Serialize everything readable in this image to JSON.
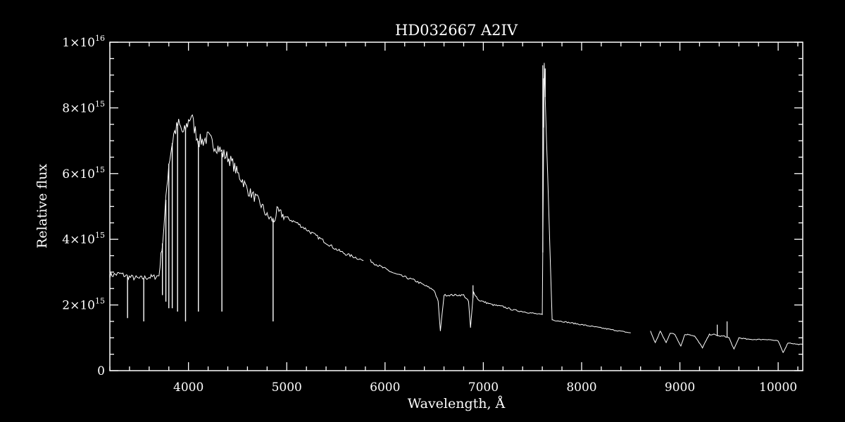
{
  "colors": {
    "background": "#000000",
    "foreground": "#ffffff"
  },
  "chart_data": {
    "type": "line",
    "title": "HD032667   A2IV",
    "xlabel": "Wavelength, Å",
    "ylabel": "Relative flux",
    "xlim": [
      3200,
      10250
    ],
    "ylim": [
      0,
      1e+16
    ],
    "x_ticks": [
      {
        "value": 4000,
        "label": "4000"
      },
      {
        "value": 5000,
        "label": "5000"
      },
      {
        "value": 6000,
        "label": "6000"
      },
      {
        "value": 7000,
        "label": "7000"
      },
      {
        "value": 8000,
        "label": "8000"
      },
      {
        "value": 9000,
        "label": "9000"
      },
      {
        "value": 10000,
        "label": "10000"
      }
    ],
    "y_ticks": [
      {
        "value": 0,
        "label": "0",
        "mantissa": "0",
        "exponent": ""
      },
      {
        "value": 2000000000000000.0,
        "label": "2×10¹⁵",
        "mantissa": "2×10",
        "exponent": "15"
      },
      {
        "value": 4000000000000000.0,
        "label": "4×10¹⁵",
        "mantissa": "4×10",
        "exponent": "15"
      },
      {
        "value": 6000000000000000.0,
        "label": "6×10¹⁵",
        "mantissa": "6×10",
        "exponent": "15"
      },
      {
        "value": 8000000000000000.0,
        "label": "8×10¹⁵",
        "mantissa": "8×10",
        "exponent": "15"
      },
      {
        "value": 1e+16,
        "label": "1×10¹⁶",
        "mantissa": "1×10",
        "exponent": "16"
      }
    ],
    "grid": false,
    "series": [
      {
        "segments": [
          {
            "x": [
              3200,
              3300,
              3400,
              3500,
              3600,
              3650,
              3700,
              3720,
              3740,
              3760,
              3780,
              3800,
              3850,
              3900,
              3950,
              4000,
              4030,
              4050,
              4100,
              4150,
              4200,
              4250,
              4300,
              4350,
              4400,
              4450,
              4500,
              4550,
              4600,
              4650,
              4700,
              4750,
              4800,
              4850,
              4870,
              4900,
              4950,
              5000,
              5100,
              5200,
              5300,
              5400,
              5500,
              5600,
              5700,
              5780
            ],
            "y": [
              2900000000000000.0,
              2950000000000000.0,
              2850000000000000.0,
              2800000000000000.0,
              2850000000000000.0,
              2850000000000000.0,
              2900000000000000.0,
              3500000000000000.0,
              4000000000000000.0,
              4800000000000000.0,
              5600000000000000.0,
              6300000000000000.0,
              7200000000000000.0,
              7500000000000000.0,
              7200000000000000.0,
              7600000000000000.0,
              7800000000000000.0,
              7500000000000000.0,
              7000000000000000.0,
              7000000000000000.0,
              7100000000000000.0,
              6900000000000000.0,
              6800000000000000.0,
              6600000000000000.0,
              6500000000000000.0,
              6300000000000000.0,
              6000000000000000.0,
              5800000000000000.0,
              5500000000000000.0,
              5350000000000000.0,
              5200000000000000.0,
              5000000000000000.0,
              4700000000000000.0,
              4600000000000000.0,
              4550000000000000.0,
              4850000000000000.0,
              4750000000000000.0,
              4650000000000000.0,
              4500000000000000.0,
              4300000000000000.0,
              4100000000000000.0,
              3900000000000000.0,
              3700000000000000.0,
              3550000000000000.0,
              3450000000000000.0,
              3350000000000000.0
            ]
          },
          {
            "x": [
              5850,
              5900,
              6000,
              6100,
              6200,
              6300,
              6400,
              6500,
              6540,
              6563,
              6600,
              6700,
              6800,
              6850,
              6870,
              6900,
              6950,
              7000,
              7100,
              7200,
              7300,
              7400,
              7500,
              7600,
              7620,
              7700,
              7800,
              7900,
              8000,
              8100,
              8200,
              8300,
              8400,
              8500
            ],
            "y": [
              3350000000000000.0,
              3250000000000000.0,
              3100000000000000.0,
              2950000000000000.0,
              2850000000000000.0,
              2750000000000000.0,
              2600000000000000.0,
              2450000000000000.0,
              2100000000000000.0,
              1200000000000000.0,
              2300000000000000.0,
              2300000000000000.0,
              2300000000000000.0,
              2100000000000000.0,
              1300000000000000.0,
              2400000000000000.0,
              2150000000000000.0,
              2100000000000000.0,
              2000000000000000.0,
              1950000000000000.0,
              1850000000000000.0,
              1800000000000000.0,
              1750000000000000.0,
              1700000000000000.0,
              9300000000000000.0,
              1550000000000000.0,
              1500000000000000.0,
              1450000000000000.0,
              1400000000000000.0,
              1350000000000000.0,
              1300000000000000.0,
              1250000000000000.0,
              1200000000000000.0,
              1150000000000000.0
            ]
          },
          {
            "x": [
              8700,
              8750,
              8800,
              8860,
              8900,
              8950,
              9010,
              9050,
              9100,
              9150,
              9230,
              9300,
              9350,
              9400,
              9450,
              9500,
              9550,
              9600,
              9700,
              9800,
              9900,
              10000,
              10050,
              10100,
              10200,
              10250
            ],
            "y": [
              1200000000000000.0,
              850000000000000.0,
              1200000000000000.0,
              850000000000000.0,
              1150000000000000.0,
              1100000000000000.0,
              750000000000000.0,
              1100000000000000.0,
              1100000000000000.0,
              1050000000000000.0,
              700000000000000.0,
              1100000000000000.0,
              1100000000000000.0,
              1050000000000000.0,
              1050000000000000.0,
              1000000000000000.0,
              650000000000000.0,
              1000000000000000.0,
              950000000000000.0,
              950000000000000.0,
              950000000000000.0,
              900000000000000.0,
              550000000000000.0,
              850000000000000.0,
              800000000000000.0,
              800000000000000.0
            ]
          }
        ],
        "absorption_lines": [
          {
            "x": 3835,
            "y": 1900000000000000.0
          },
          {
            "x": 3889,
            "y": 1800000000000000.0
          },
          {
            "x": 3970,
            "y": 1500000000000000.0
          },
          {
            "x": 4101,
            "y": 1800000000000000.0
          },
          {
            "x": 4340,
            "y": 1800000000000000.0
          },
          {
            "x": 4861,
            "y": 1500000000000000.0
          },
          {
            "x": 3545,
            "y": 1500000000000000.0
          },
          {
            "x": 3380,
            "y": 1600000000000000.0
          },
          {
            "x": 3800,
            "y": 1900000000000000.0
          },
          {
            "x": 3770,
            "y": 2100000000000000.0
          },
          {
            "x": 3735,
            "y": 2300000000000000.0
          }
        ],
        "emission_spikes": [
          {
            "x": 7605,
            "y": 9300000000000000.0
          },
          {
            "x": 7615,
            "y": 8900000000000000.0
          },
          {
            "x": 7630,
            "y": 9200000000000000.0
          },
          {
            "x": 6895,
            "y": 2600000000000000.0
          },
          {
            "x": 9380,
            "y": 1400000000000000.0
          },
          {
            "x": 9480,
            "y": 1500000000000000.0
          }
        ]
      }
    ]
  }
}
